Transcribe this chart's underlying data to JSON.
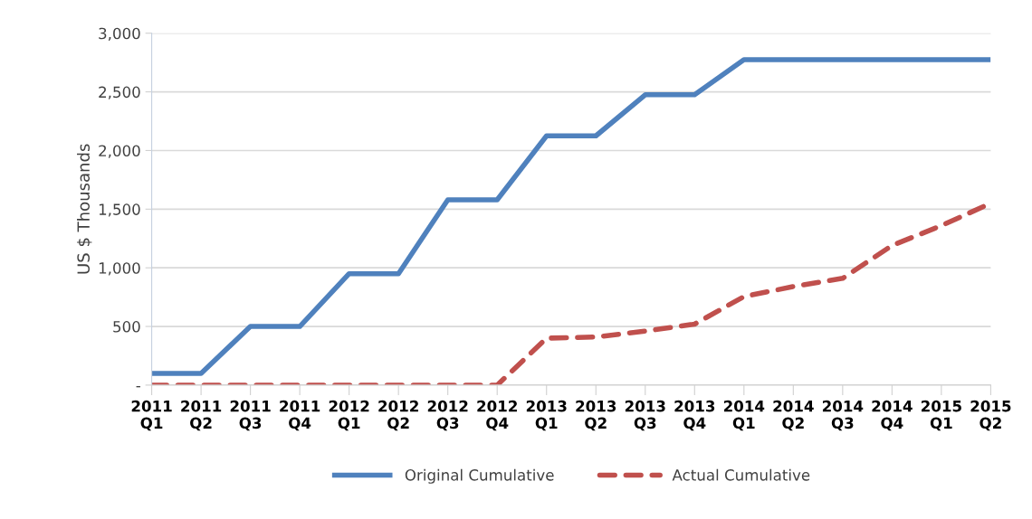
{
  "chart_data": {
    "type": "line",
    "ylabel": "US $ Thousands",
    "categories": [
      "2011\nQ1",
      "2011\nQ2",
      "2011\nQ3",
      "2011\nQ4",
      "2012\nQ1",
      "2012\nQ2",
      "2012\nQ3",
      "2012\nQ4",
      "2013\nQ1",
      "2013\nQ2",
      "2013\nQ3",
      "2013\nQ4",
      "2014\nQ1",
      "2014\nQ2",
      "2014\nQ3",
      "2014\nQ4",
      "2015\nQ1",
      "2015\nQ2"
    ],
    "series": [
      {
        "name": "Original Cumulative",
        "color": "#4f81bd",
        "line_style": "solid",
        "values": [
          100,
          100,
          500,
          500,
          950,
          950,
          1580,
          1580,
          2125,
          2125,
          2475,
          2475,
          2775,
          2775,
          2775,
          2775,
          2775,
          2775
        ]
      },
      {
        "name": "Actual Cumulative",
        "color": "#c0504d",
        "line_style": "dashed",
        "values": [
          0,
          0,
          0,
          0,
          0,
          0,
          0,
          0,
          400,
          410,
          460,
          520,
          755,
          840,
          910,
          1190,
          1360,
          1550
        ]
      }
    ],
    "ylim": [
      0,
      3000
    ],
    "yticks": [
      {
        "value": 0,
        "label": "-"
      },
      {
        "value": 500,
        "label": "500"
      },
      {
        "value": 1000,
        "label": "1,000"
      },
      {
        "value": 1500,
        "label": "1,500"
      },
      {
        "value": 2000,
        "label": "2,000"
      },
      {
        "value": 2500,
        "label": "2,500"
      },
      {
        "value": 3000,
        "label": "3,000"
      }
    ],
    "grid": "y",
    "legend": "bottom",
    "marker": "none"
  }
}
